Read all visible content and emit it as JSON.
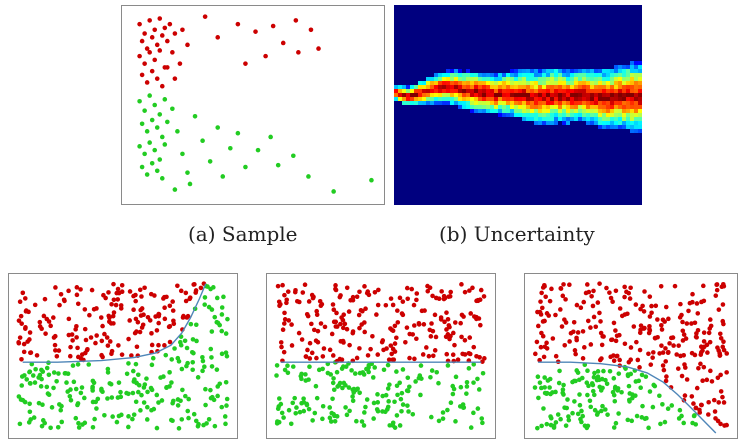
{
  "captions": {
    "a": "(a) Sample",
    "b": "(b) Uncertainty"
  },
  "colors": {
    "red_points": "#cc0000",
    "green_points": "#22cc22",
    "boundary_line": "#4f86b8",
    "frame": "#8a8a8a",
    "heatmap_background": "#00007f"
  },
  "chart_data": [
    {
      "type": "scatter",
      "name_ref": "sample",
      "title": "",
      "xlim": [
        0,
        1
      ],
      "ylim": [
        0,
        1
      ],
      "series": [
        {
          "color": "red",
          "points": [
            [
              0.05,
              0.93
            ],
            [
              0.07,
              0.88
            ],
            [
              0.09,
              0.95
            ],
            [
              0.11,
              0.9
            ],
            [
              0.13,
              0.96
            ],
            [
              0.15,
              0.91
            ],
            [
              0.06,
              0.84
            ],
            [
              0.08,
              0.8
            ],
            [
              0.1,
              0.86
            ],
            [
              0.12,
              0.82
            ],
            [
              0.14,
              0.87
            ],
            [
              0.16,
              0.84
            ],
            [
              0.05,
              0.76
            ],
            [
              0.07,
              0.72
            ],
            [
              0.09,
              0.78
            ],
            [
              0.11,
              0.74
            ],
            [
              0.13,
              0.79
            ],
            [
              0.15,
              0.7
            ],
            [
              0.06,
              0.66
            ],
            [
              0.08,
              0.62
            ],
            [
              0.1,
              0.68
            ],
            [
              0.12,
              0.64
            ],
            [
              0.14,
              0.6
            ],
            [
              0.17,
              0.93
            ],
            [
              0.19,
              0.88
            ],
            [
              0.18,
              0.78
            ],
            [
              0.16,
              0.7
            ],
            [
              0.19,
              0.64
            ],
            [
              0.22,
              0.9
            ],
            [
              0.24,
              0.82
            ],
            [
              0.21,
              0.72
            ],
            [
              0.44,
              0.93
            ],
            [
              0.51,
              0.89
            ],
            [
              0.58,
              0.92
            ],
            [
              0.67,
              0.95
            ],
            [
              0.73,
              0.9
            ],
            [
              0.62,
              0.83
            ],
            [
              0.55,
              0.76
            ],
            [
              0.68,
              0.78
            ],
            [
              0.76,
              0.8
            ],
            [
              0.47,
              0.72
            ],
            [
              0.31,
              0.97
            ],
            [
              0.36,
              0.86
            ]
          ]
        },
        {
          "color": "green",
          "points": [
            [
              0.05,
              0.52
            ],
            [
              0.07,
              0.47
            ],
            [
              0.09,
              0.55
            ],
            [
              0.11,
              0.5
            ],
            [
              0.13,
              0.45
            ],
            [
              0.15,
              0.53
            ],
            [
              0.06,
              0.4
            ],
            [
              0.08,
              0.36
            ],
            [
              0.1,
              0.42
            ],
            [
              0.12,
              0.38
            ],
            [
              0.14,
              0.33
            ],
            [
              0.16,
              0.41
            ],
            [
              0.05,
              0.28
            ],
            [
              0.07,
              0.24
            ],
            [
              0.09,
              0.3
            ],
            [
              0.11,
              0.26
            ],
            [
              0.13,
              0.21
            ],
            [
              0.15,
              0.29
            ],
            [
              0.06,
              0.17
            ],
            [
              0.08,
              0.13
            ],
            [
              0.1,
              0.19
            ],
            [
              0.12,
              0.15
            ],
            [
              0.14,
              0.11
            ],
            [
              0.18,
              0.48
            ],
            [
              0.2,
              0.36
            ],
            [
              0.22,
              0.24
            ],
            [
              0.24,
              0.14
            ],
            [
              0.27,
              0.44
            ],
            [
              0.3,
              0.31
            ],
            [
              0.33,
              0.2
            ],
            [
              0.36,
              0.38
            ],
            [
              0.38,
              0.12
            ],
            [
              0.41,
              0.27
            ],
            [
              0.44,
              0.35
            ],
            [
              0.47,
              0.17
            ],
            [
              0.52,
              0.26
            ],
            [
              0.57,
              0.33
            ],
            [
              0.6,
              0.18
            ],
            [
              0.66,
              0.23
            ],
            [
              0.72,
              0.12
            ],
            [
              0.82,
              0.04
            ],
            [
              0.97,
              0.1
            ],
            [
              0.25,
              0.08
            ],
            [
              0.19,
              0.05
            ]
          ]
        }
      ]
    },
    {
      "type": "heatmap",
      "name_ref": "uncertainty",
      "title": "",
      "colormap": "jet",
      "background": "#00007f",
      "band": {
        "x": [
          0.0,
          0.05,
          0.1,
          0.15,
          0.2,
          0.25,
          0.3,
          0.35,
          0.4,
          0.45,
          0.5,
          0.55,
          0.6,
          0.65,
          0.7,
          0.75,
          0.8,
          0.85,
          0.9,
          0.95,
          1.0
        ],
        "center": [
          0.57,
          0.55,
          0.57,
          0.59,
          0.6,
          0.59,
          0.58,
          0.57,
          0.56,
          0.57,
          0.56,
          0.55,
          0.55,
          0.56,
          0.55,
          0.56,
          0.55,
          0.54,
          0.55,
          0.55,
          0.54
        ],
        "width": [
          0.08,
          0.1,
          0.12,
          0.14,
          0.16,
          0.18,
          0.2,
          0.21,
          0.2,
          0.22,
          0.24,
          0.26,
          0.27,
          0.28,
          0.26,
          0.27,
          0.29,
          0.3,
          0.32,
          0.34,
          0.36
        ]
      }
    },
    {
      "type": "scatter",
      "name_ref": "boundary-1",
      "title": "",
      "xlim": [
        0,
        1
      ],
      "ylim": [
        0,
        1
      ],
      "boundary": [
        [
          0.04,
          0.46
        ],
        [
          0.2,
          0.46
        ],
        [
          0.4,
          0.47
        ],
        [
          0.55,
          0.49
        ],
        [
          0.65,
          0.52
        ],
        [
          0.72,
          0.57
        ],
        [
          0.77,
          0.65
        ],
        [
          0.81,
          0.75
        ],
        [
          0.85,
          0.87
        ],
        [
          0.88,
          0.97
        ]
      ],
      "n_points": 420
    },
    {
      "type": "scatter",
      "name_ref": "boundary-2",
      "title": "",
      "xlim": [
        0,
        1
      ],
      "ylim": [
        0,
        1
      ],
      "boundary": [
        [
          0.04,
          0.46
        ],
        [
          0.3,
          0.46
        ],
        [
          0.5,
          0.46
        ],
        [
          0.7,
          0.46
        ],
        [
          0.96,
          0.46
        ]
      ],
      "n_points": 420
    },
    {
      "type": "scatter",
      "name_ref": "boundary-3",
      "title": "",
      "xlim": [
        0,
        1
      ],
      "ylim": [
        0,
        1
      ],
      "boundary": [
        [
          0.04,
          0.46
        ],
        [
          0.2,
          0.46
        ],
        [
          0.35,
          0.45
        ],
        [
          0.48,
          0.43
        ],
        [
          0.58,
          0.39
        ],
        [
          0.66,
          0.33
        ],
        [
          0.73,
          0.25
        ],
        [
          0.8,
          0.16
        ],
        [
          0.86,
          0.08
        ],
        [
          0.92,
          0.0
        ]
      ],
      "n_points": 420
    }
  ]
}
